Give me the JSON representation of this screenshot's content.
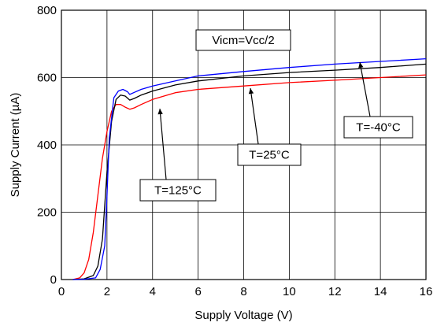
{
  "chart_data": {
    "type": "line",
    "title": "",
    "xlabel": "Supply Voltage (V)",
    "ylabel": "Supply Current (µA)",
    "xlim": [
      0,
      16
    ],
    "ylim": [
      0,
      800
    ],
    "x_ticks": [
      0,
      2,
      4,
      6,
      8,
      10,
      12,
      14,
      16
    ],
    "y_ticks": [
      0,
      200,
      400,
      600,
      800
    ],
    "grid": true,
    "series": [
      {
        "name": "T=125°C",
        "color": "#ff0000",
        "x": [
          0.5,
          0.8,
          1.0,
          1.2,
          1.4,
          1.6,
          1.8,
          2.0,
          2.2,
          2.4,
          2.6,
          2.8,
          3.0,
          3.2,
          3.5,
          4.0,
          5.0,
          6.0,
          8.0,
          10.0,
          12.0,
          14.0,
          16.0
        ],
        "y": [
          0,
          5,
          20,
          60,
          140,
          250,
          360,
          440,
          500,
          520,
          520,
          512,
          506,
          510,
          520,
          535,
          555,
          565,
          575,
          585,
          592,
          600,
          608
        ]
      },
      {
        "name": "T=25°C",
        "color": "#000000",
        "x": [
          0.5,
          1.0,
          1.4,
          1.6,
          1.8,
          2.0,
          2.2,
          2.4,
          2.6,
          2.8,
          3.0,
          3.2,
          3.5,
          4.0,
          5.0,
          6.0,
          8.0,
          10.0,
          12.0,
          14.0,
          16.0
        ],
        "y": [
          0,
          2,
          12,
          40,
          120,
          320,
          470,
          535,
          548,
          545,
          533,
          538,
          548,
          560,
          578,
          590,
          605,
          615,
          622,
          630,
          640
        ]
      },
      {
        "name": "T=-40°C",
        "color": "#0000ff",
        "x": [
          0.5,
          1.0,
          1.5,
          1.7,
          1.9,
          2.0,
          2.1,
          2.3,
          2.5,
          2.7,
          2.9,
          3.0,
          3.2,
          3.5,
          4.0,
          5.0,
          6.0,
          8.0,
          10.0,
          12.0,
          14.0,
          16.0
        ],
        "y": [
          0,
          1,
          5,
          30,
          100,
          250,
          420,
          540,
          560,
          565,
          558,
          550,
          556,
          565,
          575,
          590,
          605,
          618,
          630,
          640,
          648,
          656
        ]
      }
    ],
    "annotations": [
      {
        "text": "Vicm=Vcc/2"
      },
      {
        "text": "T=125°C"
      },
      {
        "text": "T=25°C"
      },
      {
        "text": "T=-40°C"
      }
    ]
  }
}
